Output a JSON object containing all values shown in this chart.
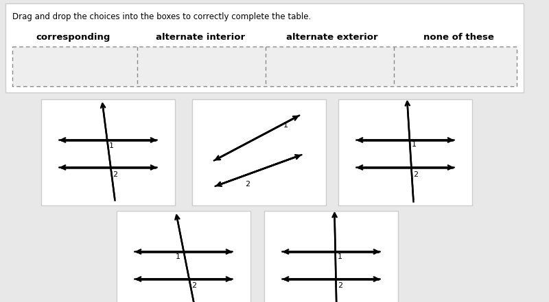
{
  "title": "Drag and drop the choices into the boxes to correctly complete the table.",
  "headers": [
    "corresponding",
    "alternate interior",
    "alternate exterior",
    "none of these"
  ],
  "bg_color": "#e8e8e8",
  "card_bg": "#ffffff",
  "header_bg": "#ffffff",
  "header_border": "#cccccc",
  "dashed_color": "#888888",
  "text_color": "#222222"
}
